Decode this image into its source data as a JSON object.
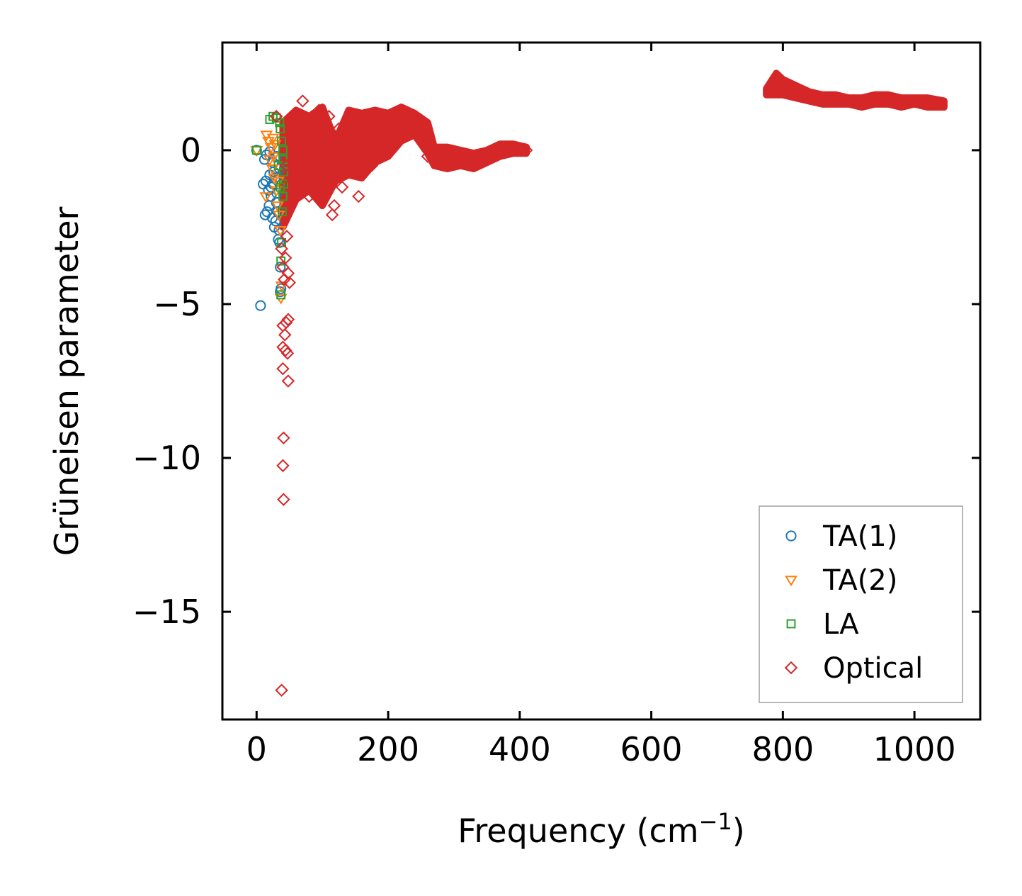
{
  "chart_data": {
    "type": "scatter",
    "title": "",
    "xlabel": "Frequency (cm",
    "xlabel_sup": "−1",
    "xlabel_end": ")",
    "ylabel": "Grüneisen parameter",
    "xlim": [
      -52,
      1100
    ],
    "ylim": [
      -18.5,
      3.5
    ],
    "xticks": [
      0,
      200,
      400,
      600,
      800,
      1000
    ],
    "xtick_labels": [
      "0",
      "200",
      "400",
      "600",
      "800",
      "1000"
    ],
    "yticks": [
      0,
      -5,
      -10,
      -15
    ],
    "ytick_labels": [
      "0",
      "−5",
      "−10",
      "−15"
    ],
    "grid": false,
    "legend_position": "lower-right",
    "series": [
      {
        "name": "TA(1)",
        "marker": "circle",
        "color": "#1f77b4",
        "points": [
          [
            0,
            0
          ],
          [
            12,
            -0.3
          ],
          [
            15,
            -0.15
          ],
          [
            20,
            -0.05
          ],
          [
            25,
            -0.4
          ],
          [
            30,
            -0.2
          ],
          [
            14,
            -1.0
          ],
          [
            18,
            -1.3
          ],
          [
            20,
            -0.8
          ],
          [
            22,
            -1.5
          ],
          [
            25,
            -1.1
          ],
          [
            28,
            -0.9
          ],
          [
            30,
            -1.7
          ],
          [
            32,
            -2.0
          ],
          [
            35,
            -0.6
          ],
          [
            10,
            -1.1
          ],
          [
            13,
            -2.1
          ],
          [
            16,
            -2.0
          ],
          [
            19,
            -1.8
          ],
          [
            24,
            -2.2
          ],
          [
            27,
            -2.5
          ],
          [
            29,
            -2.3
          ],
          [
            33,
            -2.9
          ],
          [
            35,
            -3.0
          ],
          [
            36,
            -3.8
          ],
          [
            36,
            -4.6
          ],
          [
            37,
            -4.5
          ],
          [
            6,
            -5.05
          ],
          [
            22,
            -1.2
          ],
          [
            26,
            -0.7
          ],
          [
            31,
            -1.4
          ],
          [
            34,
            -2.6
          ]
        ]
      },
      {
        "name": "TA(2)",
        "marker": "triangle-down",
        "color": "#ff7f0e",
        "points": [
          [
            0,
            0
          ],
          [
            15,
            0.5
          ],
          [
            18,
            0.3
          ],
          [
            22,
            0.1
          ],
          [
            25,
            0.4
          ],
          [
            28,
            0.2
          ],
          [
            20,
            -0.3
          ],
          [
            24,
            -0.6
          ],
          [
            27,
            -0.9
          ],
          [
            30,
            -1.3
          ],
          [
            32,
            -1.8
          ],
          [
            34,
            -2.1
          ],
          [
            36,
            -2.6
          ],
          [
            14,
            -1.5
          ],
          [
            38,
            -4.4
          ],
          [
            37,
            -4.8
          ],
          [
            26,
            -0.2
          ],
          [
            33,
            -1.0
          ]
        ]
      },
      {
        "name": "LA",
        "marker": "square",
        "color": "#2ca02c",
        "points": [
          [
            0,
            0
          ],
          [
            20,
            1.0
          ],
          [
            25,
            1.1
          ],
          [
            30,
            1.05
          ],
          [
            35,
            0.9
          ],
          [
            36,
            0.7
          ],
          [
            38,
            0.3
          ],
          [
            40,
            0.0
          ],
          [
            40,
            -0.3
          ],
          [
            41,
            -0.7
          ],
          [
            41,
            -1.1
          ],
          [
            40,
            -1.5
          ],
          [
            39,
            -2.0
          ],
          [
            38,
            -3.0
          ],
          [
            37,
            -3.6
          ],
          [
            37,
            -4.7
          ],
          [
            33,
            -0.5
          ],
          [
            36,
            -1.2
          ]
        ]
      },
      {
        "name": "Optical",
        "marker": "diamond",
        "color": "#d62728",
        "points": [
          [
            30,
            1.1
          ],
          [
            45,
            -0.5
          ],
          [
            50,
            0.5
          ],
          [
            55,
            -1.0
          ],
          [
            60,
            0.8
          ],
          [
            65,
            -0.3
          ],
          [
            70,
            1.6
          ],
          [
            75,
            0.3
          ],
          [
            80,
            -1.5
          ],
          [
            85,
            0.9
          ],
          [
            90,
            -0.6
          ],
          [
            95,
            1.3
          ],
          [
            100,
            0.2
          ],
          [
            105,
            -0.8
          ],
          [
            110,
            1.1
          ],
          [
            115,
            -2.1
          ],
          [
            118,
            -1.8
          ],
          [
            120,
            -0.4
          ],
          [
            125,
            0.7
          ],
          [
            130,
            -1.2
          ],
          [
            135,
            0.4
          ],
          [
            140,
            1.0
          ],
          [
            145,
            -0.2
          ],
          [
            150,
            0.6
          ],
          [
            155,
            -1.5
          ],
          [
            160,
            -0.7
          ],
          [
            165,
            0.9
          ],
          [
            170,
            -0.3
          ],
          [
            175,
            -0.5
          ],
          [
            180,
            0.2
          ],
          [
            190,
            0.8
          ],
          [
            200,
            0.3
          ],
          [
            210,
            0.9
          ],
          [
            220,
            1.1
          ],
          [
            230,
            0.6
          ],
          [
            240,
            1.0
          ],
          [
            250,
            0.5
          ],
          [
            260,
            -0.2
          ],
          [
            280,
            -0.4
          ],
          [
            300,
            -0.2
          ],
          [
            330,
            -0.4
          ],
          [
            360,
            -0.2
          ],
          [
            390,
            0.1
          ],
          [
            410,
            0.0
          ],
          [
            38,
            -3.2
          ],
          [
            40,
            -3.8
          ],
          [
            42,
            -4.2
          ],
          [
            44,
            -3.5
          ],
          [
            46,
            -2.8
          ],
          [
            48,
            -4.0
          ],
          [
            50,
            -4.3
          ],
          [
            40,
            -5.7
          ],
          [
            43,
            -6.0
          ],
          [
            45,
            -5.6
          ],
          [
            48,
            -5.5
          ],
          [
            40,
            -6.4
          ],
          [
            44,
            -6.5
          ],
          [
            47,
            -6.6
          ],
          [
            40,
            -7.1
          ],
          [
            48,
            -7.5
          ],
          [
            41,
            -9.35
          ],
          [
            40,
            -10.25
          ],
          [
            41,
            -11.35
          ],
          [
            38,
            -17.55
          ]
        ]
      }
    ],
    "bands": [
      {
        "series": "Optical",
        "x": [
          40,
          60,
          80,
          100,
          120,
          140,
          160,
          180,
          200,
          220,
          240,
          260,
          270,
          290,
          310,
          330,
          350,
          370,
          390,
          410
        ],
        "y_upper": [
          0.9,
          1.3,
          1.1,
          1.4,
          0.3,
          1.3,
          1.2,
          1.3,
          1.2,
          1.4,
          1.2,
          0.9,
          0.1,
          0.1,
          0.0,
          -0.1,
          0.0,
          0.2,
          0.2,
          0.1
        ],
        "y_lower": [
          -2.5,
          -1.6,
          -1.3,
          -1.8,
          -1.0,
          -0.8,
          -0.9,
          -0.4,
          -0.2,
          0.3,
          0.5,
          -0.1,
          -0.5,
          -0.6,
          -0.5,
          -0.6,
          -0.4,
          -0.2,
          -0.1,
          -0.1
        ]
      },
      {
        "series": "Optical",
        "x": [
          775,
          790,
          800,
          820,
          840,
          860,
          880,
          900,
          920,
          940,
          960,
          980,
          1000,
          1020,
          1045
        ],
        "y_upper": [
          2.0,
          2.5,
          2.3,
          2.1,
          1.9,
          1.8,
          1.8,
          1.7,
          1.7,
          1.8,
          1.8,
          1.7,
          1.7,
          1.7,
          1.6
        ],
        "y_lower": [
          1.8,
          1.8,
          1.8,
          1.7,
          1.6,
          1.5,
          1.5,
          1.5,
          1.4,
          1.5,
          1.5,
          1.4,
          1.5,
          1.4,
          1.4
        ]
      }
    ]
  }
}
